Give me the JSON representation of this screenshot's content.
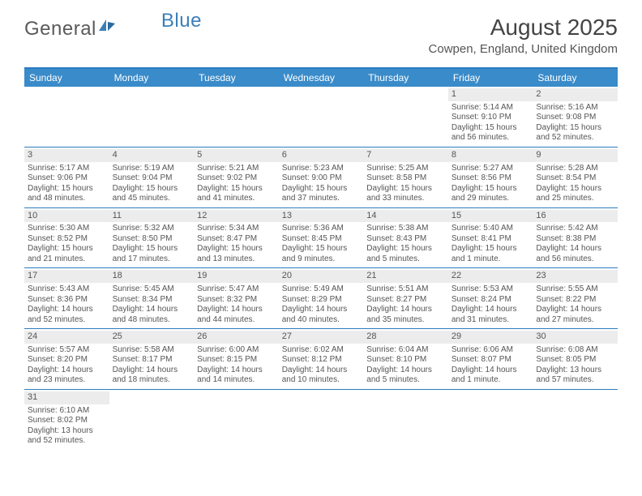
{
  "logo": {
    "text1": "General",
    "text2": "Blue"
  },
  "title": "August 2025",
  "location": "Cowpen, England, United Kingdom",
  "colors": {
    "header_bg": "#3a8bc9",
    "border": "#2b7bbf",
    "daynum_bg": "#ececec",
    "text": "#555555",
    "logo_gray": "#5a5a5a",
    "logo_blue": "#3a7fb8"
  },
  "day_names": [
    "Sunday",
    "Monday",
    "Tuesday",
    "Wednesday",
    "Thursday",
    "Friday",
    "Saturday"
  ],
  "weeks": [
    [
      null,
      null,
      null,
      null,
      null,
      {
        "n": "1",
        "sr": "5:14 AM",
        "ss": "9:10 PM",
        "dl": "15 hours and 56 minutes."
      },
      {
        "n": "2",
        "sr": "5:16 AM",
        "ss": "9:08 PM",
        "dl": "15 hours and 52 minutes."
      }
    ],
    [
      {
        "n": "3",
        "sr": "5:17 AM",
        "ss": "9:06 PM",
        "dl": "15 hours and 48 minutes."
      },
      {
        "n": "4",
        "sr": "5:19 AM",
        "ss": "9:04 PM",
        "dl": "15 hours and 45 minutes."
      },
      {
        "n": "5",
        "sr": "5:21 AM",
        "ss": "9:02 PM",
        "dl": "15 hours and 41 minutes."
      },
      {
        "n": "6",
        "sr": "5:23 AM",
        "ss": "9:00 PM",
        "dl": "15 hours and 37 minutes."
      },
      {
        "n": "7",
        "sr": "5:25 AM",
        "ss": "8:58 PM",
        "dl": "15 hours and 33 minutes."
      },
      {
        "n": "8",
        "sr": "5:27 AM",
        "ss": "8:56 PM",
        "dl": "15 hours and 29 minutes."
      },
      {
        "n": "9",
        "sr": "5:28 AM",
        "ss": "8:54 PM",
        "dl": "15 hours and 25 minutes."
      }
    ],
    [
      {
        "n": "10",
        "sr": "5:30 AM",
        "ss": "8:52 PM",
        "dl": "15 hours and 21 minutes."
      },
      {
        "n": "11",
        "sr": "5:32 AM",
        "ss": "8:50 PM",
        "dl": "15 hours and 17 minutes."
      },
      {
        "n": "12",
        "sr": "5:34 AM",
        "ss": "8:47 PM",
        "dl": "15 hours and 13 minutes."
      },
      {
        "n": "13",
        "sr": "5:36 AM",
        "ss": "8:45 PM",
        "dl": "15 hours and 9 minutes."
      },
      {
        "n": "14",
        "sr": "5:38 AM",
        "ss": "8:43 PM",
        "dl": "15 hours and 5 minutes."
      },
      {
        "n": "15",
        "sr": "5:40 AM",
        "ss": "8:41 PM",
        "dl": "15 hours and 1 minute."
      },
      {
        "n": "16",
        "sr": "5:42 AM",
        "ss": "8:38 PM",
        "dl": "14 hours and 56 minutes."
      }
    ],
    [
      {
        "n": "17",
        "sr": "5:43 AM",
        "ss": "8:36 PM",
        "dl": "14 hours and 52 minutes."
      },
      {
        "n": "18",
        "sr": "5:45 AM",
        "ss": "8:34 PM",
        "dl": "14 hours and 48 minutes."
      },
      {
        "n": "19",
        "sr": "5:47 AM",
        "ss": "8:32 PM",
        "dl": "14 hours and 44 minutes."
      },
      {
        "n": "20",
        "sr": "5:49 AM",
        "ss": "8:29 PM",
        "dl": "14 hours and 40 minutes."
      },
      {
        "n": "21",
        "sr": "5:51 AM",
        "ss": "8:27 PM",
        "dl": "14 hours and 35 minutes."
      },
      {
        "n": "22",
        "sr": "5:53 AM",
        "ss": "8:24 PM",
        "dl": "14 hours and 31 minutes."
      },
      {
        "n": "23",
        "sr": "5:55 AM",
        "ss": "8:22 PM",
        "dl": "14 hours and 27 minutes."
      }
    ],
    [
      {
        "n": "24",
        "sr": "5:57 AM",
        "ss": "8:20 PM",
        "dl": "14 hours and 23 minutes."
      },
      {
        "n": "25",
        "sr": "5:58 AM",
        "ss": "8:17 PM",
        "dl": "14 hours and 18 minutes."
      },
      {
        "n": "26",
        "sr": "6:00 AM",
        "ss": "8:15 PM",
        "dl": "14 hours and 14 minutes."
      },
      {
        "n": "27",
        "sr": "6:02 AM",
        "ss": "8:12 PM",
        "dl": "14 hours and 10 minutes."
      },
      {
        "n": "28",
        "sr": "6:04 AM",
        "ss": "8:10 PM",
        "dl": "14 hours and 5 minutes."
      },
      {
        "n": "29",
        "sr": "6:06 AM",
        "ss": "8:07 PM",
        "dl": "14 hours and 1 minute."
      },
      {
        "n": "30",
        "sr": "6:08 AM",
        "ss": "8:05 PM",
        "dl": "13 hours and 57 minutes."
      }
    ],
    [
      {
        "n": "31",
        "sr": "6:10 AM",
        "ss": "8:02 PM",
        "dl": "13 hours and 52 minutes."
      },
      null,
      null,
      null,
      null,
      null,
      null
    ]
  ],
  "labels": {
    "sunrise": "Sunrise:",
    "sunset": "Sunset:",
    "daylight": "Daylight:"
  }
}
